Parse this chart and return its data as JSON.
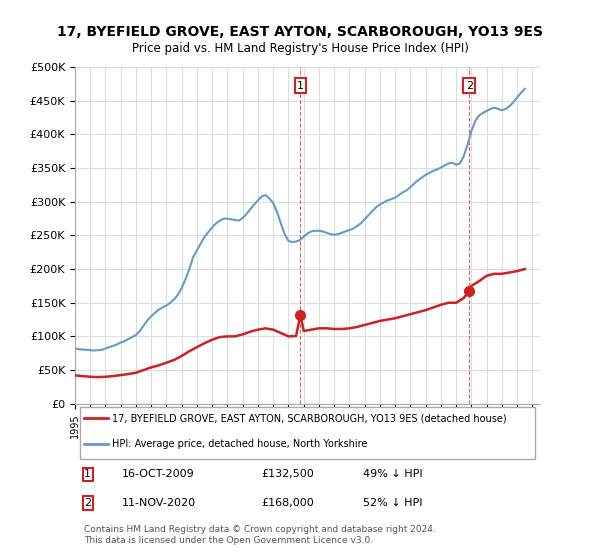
{
  "title": "17, BYEFIELD GROVE, EAST AYTON, SCARBOROUGH, YO13 9ES",
  "subtitle": "Price paid vs. HM Land Registry's House Price Index (HPI)",
  "hpi_color": "#6699cc",
  "price_color": "#cc2222",
  "background_color": "#ffffff",
  "grid_color": "#dddddd",
  "ylim": [
    0,
    500000
  ],
  "yticks": [
    0,
    50000,
    100000,
    150000,
    200000,
    250000,
    300000,
    350000,
    400000,
    450000,
    500000
  ],
  "xlim_start": 1995.0,
  "xlim_end": 2025.5,
  "transaction1": {
    "date": 2009.79,
    "price": 132500,
    "label": "1"
  },
  "transaction2": {
    "date": 2020.86,
    "price": 168000,
    "label": "2"
  },
  "legend_entry1": "17, BYEFIELD GROVE, EAST AYTON, SCARBOROUGH, YO13 9ES (detached house)",
  "legend_entry2": "HPI: Average price, detached house, North Yorkshire",
  "annotation1_date": "16-OCT-2009",
  "annotation1_price": "£132,500",
  "annotation1_hpi": "49% ↓ HPI",
  "annotation2_date": "11-NOV-2020",
  "annotation2_price": "£168,000",
  "annotation2_hpi": "52% ↓ HPI",
  "footer": "Contains HM Land Registry data © Crown copyright and database right 2024.\nThis data is licensed under the Open Government Licence v3.0.",
  "hpi_data_x": [
    1995.0,
    1995.25,
    1995.5,
    1995.75,
    1996.0,
    1996.25,
    1996.5,
    1996.75,
    1997.0,
    1997.25,
    1997.5,
    1997.75,
    1998.0,
    1998.25,
    1998.5,
    1998.75,
    1999.0,
    1999.25,
    1999.5,
    1999.75,
    2000.0,
    2000.25,
    2000.5,
    2000.75,
    2001.0,
    2001.25,
    2001.5,
    2001.75,
    2002.0,
    2002.25,
    2002.5,
    2002.75,
    2003.0,
    2003.25,
    2003.5,
    2003.75,
    2004.0,
    2004.25,
    2004.5,
    2004.75,
    2005.0,
    2005.25,
    2005.5,
    2005.75,
    2006.0,
    2006.25,
    2006.5,
    2006.75,
    2007.0,
    2007.25,
    2007.5,
    2007.75,
    2008.0,
    2008.25,
    2008.5,
    2008.75,
    2009.0,
    2009.25,
    2009.5,
    2009.75,
    2010.0,
    2010.25,
    2010.5,
    2010.75,
    2011.0,
    2011.25,
    2011.5,
    2011.75,
    2012.0,
    2012.25,
    2012.5,
    2012.75,
    2013.0,
    2013.25,
    2013.5,
    2013.75,
    2014.0,
    2014.25,
    2014.5,
    2014.75,
    2015.0,
    2015.25,
    2015.5,
    2015.75,
    2016.0,
    2016.25,
    2016.5,
    2016.75,
    2017.0,
    2017.25,
    2017.5,
    2017.75,
    2018.0,
    2018.25,
    2018.5,
    2018.75,
    2019.0,
    2019.25,
    2019.5,
    2019.75,
    2020.0,
    2020.25,
    2020.5,
    2020.75,
    2021.0,
    2021.25,
    2021.5,
    2021.75,
    2022.0,
    2022.25,
    2022.5,
    2022.75,
    2023.0,
    2023.25,
    2023.5,
    2023.75,
    2024.0,
    2024.25,
    2024.5
  ],
  "hpi_data_y": [
    82000,
    81000,
    80500,
    80000,
    79500,
    79000,
    79500,
    80000,
    82000,
    84000,
    86000,
    88000,
    91000,
    93000,
    96000,
    99000,
    102000,
    108000,
    116000,
    124000,
    130000,
    135000,
    140000,
    143000,
    146000,
    150000,
    155000,
    162000,
    172000,
    185000,
    200000,
    218000,
    228000,
    238000,
    248000,
    255000,
    262000,
    268000,
    272000,
    275000,
    275000,
    274000,
    273000,
    272000,
    276000,
    282000,
    289000,
    296000,
    302000,
    308000,
    310000,
    305000,
    298000,
    285000,
    268000,
    252000,
    242000,
    240000,
    241000,
    243000,
    248000,
    253000,
    256000,
    257000,
    257000,
    256000,
    254000,
    252000,
    251000,
    252000,
    254000,
    256000,
    258000,
    260000,
    264000,
    268000,
    274000,
    280000,
    286000,
    292000,
    296000,
    299000,
    302000,
    304000,
    306000,
    310000,
    314000,
    317000,
    322000,
    327000,
    332000,
    336000,
    340000,
    343000,
    346000,
    348000,
    351000,
    354000,
    357000,
    358000,
    355000,
    357000,
    368000,
    385000,
    405000,
    420000,
    428000,
    432000,
    435000,
    438000,
    440000,
    438000,
    436000,
    438000,
    442000,
    448000,
    455000,
    462000,
    468000
  ],
  "price_data_x": [
    1995.0,
    1995.5,
    1996.0,
    1996.5,
    1997.0,
    1997.5,
    1998.0,
    1998.5,
    1999.0,
    1999.5,
    2000.0,
    2000.5,
    2001.0,
    2001.5,
    2002.0,
    2002.5,
    2003.0,
    2003.5,
    2004.0,
    2004.5,
    2005.0,
    2005.5,
    2006.0,
    2006.5,
    2007.0,
    2007.5,
    2008.0,
    2008.5,
    2009.0,
    2009.5,
    2009.79,
    2010.0,
    2010.5,
    2011.0,
    2011.5,
    2012.0,
    2012.5,
    2013.0,
    2013.5,
    2014.0,
    2014.5,
    2015.0,
    2015.5,
    2016.0,
    2016.5,
    2017.0,
    2017.5,
    2018.0,
    2018.5,
    2019.0,
    2019.5,
    2020.0,
    2020.5,
    2020.86,
    2021.0,
    2021.5,
    2022.0,
    2022.5,
    2023.0,
    2023.5,
    2024.0,
    2024.5
  ],
  "price_data_y": [
    42000,
    41000,
    40000,
    39500,
    40000,
    41000,
    42500,
    44000,
    46000,
    50000,
    54000,
    57000,
    61000,
    65000,
    71000,
    78000,
    84000,
    90000,
    95000,
    99000,
    100000,
    100000,
    103000,
    107000,
    110000,
    112000,
    110000,
    105000,
    100000,
    100500,
    132500,
    108000,
    110000,
    112000,
    112000,
    111000,
    111000,
    112000,
    114000,
    117000,
    120000,
    123000,
    125000,
    127000,
    130000,
    133000,
    136000,
    139000,
    143000,
    147000,
    150000,
    150000,
    157000,
    168000,
    175000,
    182000,
    190000,
    193000,
    193000,
    195000,
    197000,
    200000
  ]
}
